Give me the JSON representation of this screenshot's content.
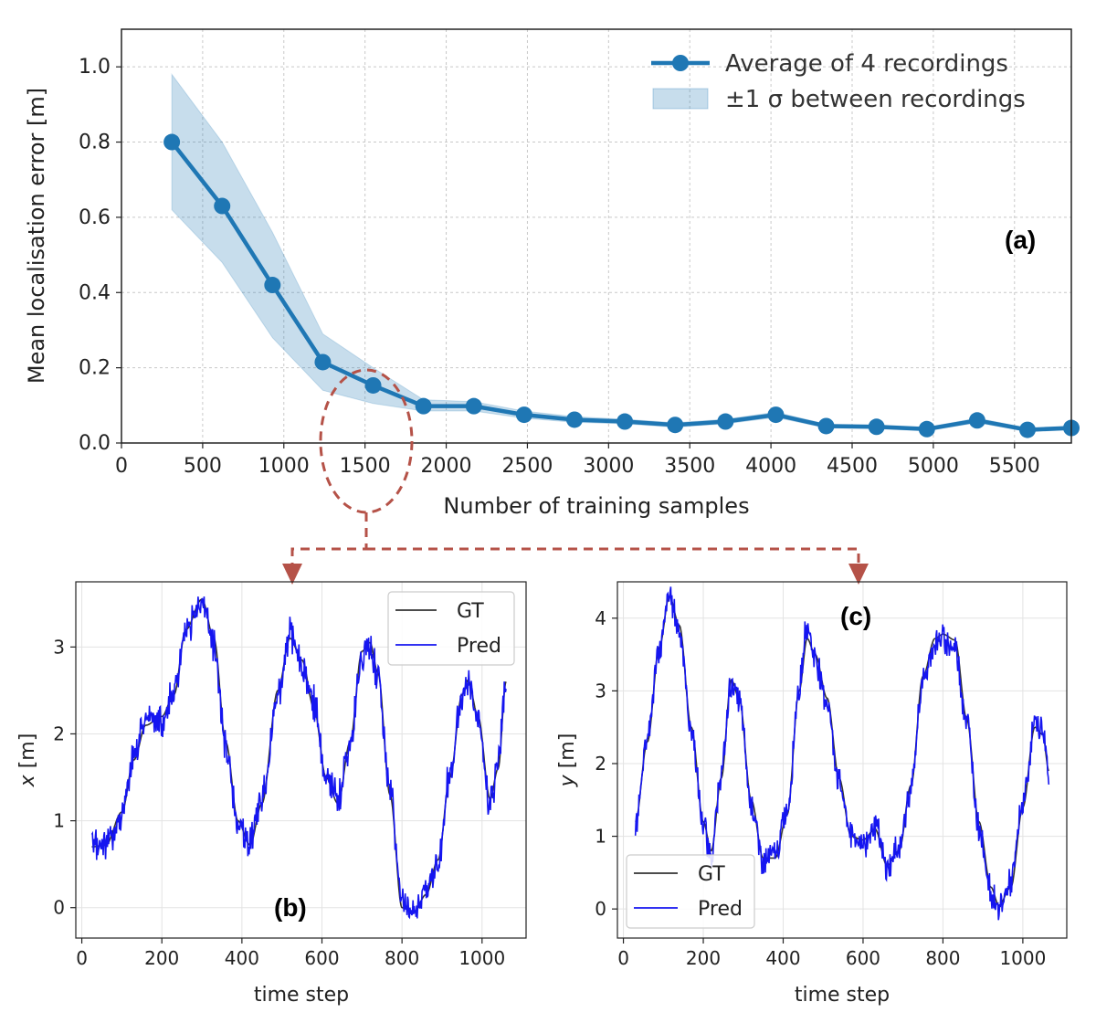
{
  "chart_data": [
    {
      "id": "a",
      "type": "line",
      "panel_label": "(a)",
      "xlabel": "Number of training samples",
      "ylabel": "Mean localisation error [m]",
      "xlim": [
        0,
        5850
      ],
      "ylim": [
        0,
        1.1
      ],
      "xticks": [
        0,
        500,
        1000,
        1500,
        2000,
        2500,
        3000,
        3500,
        4000,
        4500,
        5000,
        5500
      ],
      "xtick_labels": [
        "0",
        "500",
        "1000",
        "1500",
        "2000",
        "2500",
        "3000",
        "3500",
        "4000",
        "4500",
        "5000",
        "5500"
      ],
      "yticks": [
        0,
        0.2,
        0.4,
        0.6,
        0.8,
        1.0
      ],
      "ytick_labels": [
        "0.0",
        "0.2",
        "0.4",
        "0.6",
        "0.8",
        "1.0"
      ],
      "grid": true,
      "legend_position": "top-right",
      "color": "#1f77b4",
      "series": [
        {
          "name": "Average of 4 recordings",
          "x": [
            310,
            620,
            930,
            1240,
            1550,
            1860,
            2170,
            2480,
            2790,
            3100,
            3410,
            3720,
            4030,
            4340,
            4650,
            4960,
            5270,
            5580,
            5850
          ],
          "values": [
            0.8,
            0.63,
            0.42,
            0.215,
            0.153,
            0.098,
            0.098,
            0.075,
            0.062,
            0.057,
            0.048,
            0.057,
            0.075,
            0.045,
            0.043,
            0.037,
            0.06,
            0.035,
            0.04
          ]
        },
        {
          "name": "±1 σ between recordings",
          "x": [
            310,
            620,
            930,
            1240,
            1550,
            1860,
            2170,
            2480,
            2790,
            3100,
            3410,
            3720,
            4030,
            4340,
            4650,
            4960,
            5270,
            5580,
            5850
          ],
          "upper": [
            0.98,
            0.8,
            0.56,
            0.29,
            0.2,
            0.115,
            0.11,
            0.085,
            0.07,
            0.063,
            0.054,
            0.063,
            0.082,
            0.05,
            0.048,
            0.042,
            0.066,
            0.04,
            0.045
          ],
          "lower": [
            0.62,
            0.48,
            0.28,
            0.14,
            0.105,
            0.085,
            0.085,
            0.066,
            0.055,
            0.051,
            0.042,
            0.051,
            0.068,
            0.04,
            0.038,
            0.032,
            0.054,
            0.03,
            0.035
          ]
        }
      ]
    },
    {
      "id": "b",
      "type": "line",
      "panel_label": "(b)",
      "xlabel": "time step",
      "ylabel": "x [m]",
      "ylabel_var": "x",
      "ylabel_unit": " [m]",
      "xlim": [
        -15,
        1110
      ],
      "ylim": [
        -0.35,
        3.75
      ],
      "xticks": [
        0,
        200,
        400,
        600,
        800,
        1000
      ],
      "xtick_labels": [
        "0",
        "200",
        "400",
        "600",
        "800",
        "1000"
      ],
      "yticks": [
        0,
        1,
        2,
        3
      ],
      "ytick_labels": [
        "0",
        "1",
        "2",
        "3"
      ],
      "grid": true,
      "legend_position": "top-right",
      "series": [
        {
          "name": "GT",
          "color": "#333333",
          "x": [
            25,
            60,
            100,
            130,
            160,
            200,
            230,
            260,
            300,
            330,
            360,
            390,
            420,
            450,
            490,
            520,
            550,
            580,
            610,
            640,
            670,
            700,
            720,
            740,
            770,
            800,
            830,
            860,
            890,
            920,
            950,
            965,
            990,
            1020,
            1040,
            1060
          ],
          "values": [
            0.7,
            0.72,
            1.1,
            1.7,
            2.1,
            2.2,
            2.45,
            3.2,
            3.55,
            3.1,
            1.9,
            1.0,
            0.72,
            1.2,
            2.5,
            3.1,
            2.85,
            2.3,
            1.5,
            1.2,
            1.9,
            2.95,
            3.05,
            2.7,
            1.3,
            0.0,
            -0.05,
            0.15,
            0.55,
            1.5,
            2.45,
            2.62,
            2.2,
            1.25,
            1.6,
            2.6
          ]
        },
        {
          "name": "Pred",
          "color": "#1515f0",
          "x": [
            25,
            60,
            100,
            130,
            160,
            200,
            230,
            260,
            300,
            330,
            360,
            390,
            420,
            450,
            490,
            520,
            550,
            580,
            610,
            640,
            670,
            700,
            720,
            740,
            770,
            800,
            830,
            860,
            890,
            920,
            950,
            965,
            990,
            1020,
            1040,
            1060
          ],
          "values": [
            0.68,
            0.75,
            1.05,
            1.75,
            2.2,
            2.15,
            2.5,
            3.15,
            3.5,
            3.05,
            1.85,
            0.95,
            0.75,
            1.25,
            2.45,
            3.15,
            2.8,
            2.35,
            1.45,
            1.25,
            1.85,
            2.9,
            3.02,
            2.65,
            1.35,
            0.05,
            -0.08,
            0.18,
            0.5,
            1.55,
            2.4,
            2.6,
            2.15,
            1.2,
            1.65,
            2.65
          ]
        }
      ]
    },
    {
      "id": "c",
      "type": "line",
      "panel_label": "(c)",
      "xlabel": "time step",
      "ylabel": "y [m]",
      "ylabel_var": "y",
      "ylabel_unit": " [m]",
      "xlim": [
        -15,
        1110
      ],
      "ylim": [
        -0.4,
        4.5
      ],
      "xticks": [
        0,
        200,
        400,
        600,
        800,
        1000
      ],
      "xtick_labels": [
        "0",
        "200",
        "400",
        "600",
        "800",
        "1000"
      ],
      "yticks": [
        0,
        1,
        2,
        3,
        4
      ],
      "ytick_labels": [
        "0",
        "1",
        "2",
        "3",
        "4"
      ],
      "grid": true,
      "legend_position": "bottom-left",
      "series": [
        {
          "name": "GT",
          "color": "#333333",
          "x": [
            30,
            60,
            90,
            115,
            140,
            170,
            200,
            220,
            245,
            270,
            290,
            320,
            350,
            380,
            410,
            440,
            460,
            480,
            510,
            540,
            570,
            600,
            630,
            660,
            690,
            720,
            750,
            780,
            800,
            830,
            860,
            890,
            920,
            940,
            970,
            1000,
            1030,
            1050,
            1065
          ],
          "values": [
            1.2,
            2.3,
            3.6,
            4.3,
            3.9,
            2.5,
            1.2,
            0.8,
            1.8,
            3.15,
            2.9,
            1.5,
            0.7,
            0.7,
            1.3,
            3.0,
            3.72,
            3.5,
            2.9,
            1.8,
            1.0,
            0.95,
            1.1,
            0.6,
            0.8,
            1.7,
            3.2,
            3.72,
            3.78,
            3.7,
            2.6,
            1.2,
            0.3,
            0.05,
            0.3,
            1.4,
            2.5,
            2.4,
            1.9
          ]
        },
        {
          "name": "Pred",
          "color": "#1515f0",
          "x": [
            30,
            60,
            90,
            115,
            140,
            170,
            200,
            220,
            245,
            270,
            290,
            320,
            350,
            380,
            410,
            440,
            460,
            480,
            510,
            540,
            570,
            600,
            630,
            660,
            690,
            720,
            750,
            780,
            800,
            830,
            860,
            890,
            920,
            940,
            970,
            1000,
            1030,
            1050,
            1065
          ],
          "values": [
            1.15,
            2.4,
            3.55,
            4.3,
            3.85,
            2.45,
            1.15,
            0.75,
            1.85,
            3.1,
            2.85,
            1.45,
            0.65,
            0.75,
            1.35,
            3.05,
            3.9,
            3.45,
            2.85,
            1.75,
            1.05,
            0.9,
            1.15,
            0.55,
            0.85,
            1.65,
            3.15,
            3.65,
            3.7,
            3.6,
            2.55,
            1.15,
            0.25,
            0.02,
            0.35,
            1.45,
            2.55,
            2.45,
            1.85
          ]
        }
      ]
    }
  ],
  "connector": {
    "color": "#b55248"
  }
}
